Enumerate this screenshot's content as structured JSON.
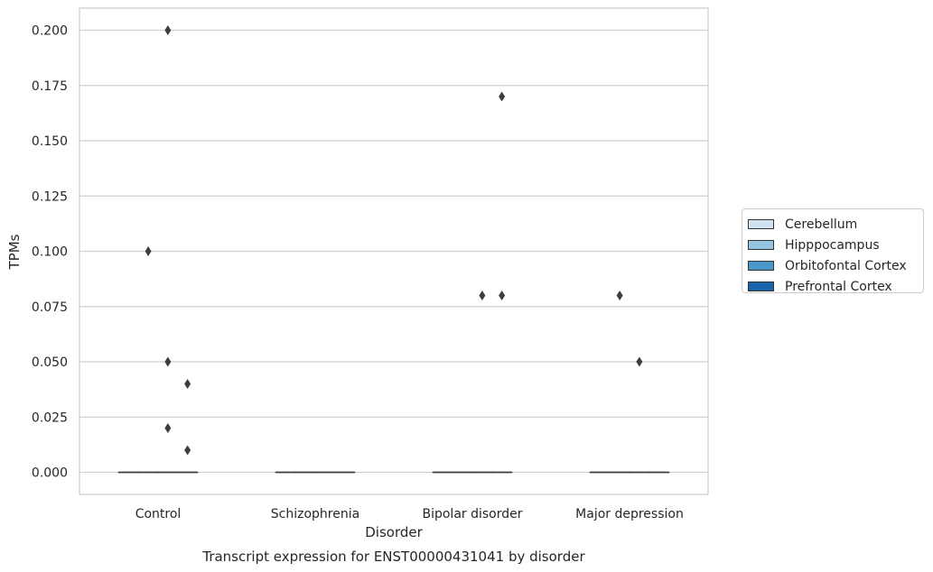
{
  "chart_data": {
    "type": "box",
    "title": "Transcript expression for ENST00000431041 by disorder",
    "xlabel": "Disorder",
    "ylabel": "TPMs",
    "ylim": [
      -0.01,
      0.21
    ],
    "yticks": [
      "0.000",
      "0.025",
      "0.050",
      "0.075",
      "0.100",
      "0.125",
      "0.150",
      "0.175",
      "0.200"
    ],
    "categories": [
      "Control",
      "Schizophrenia",
      "Bipolar disorder",
      "Major depression"
    ],
    "grid": true,
    "legend_position": "right",
    "series": [
      {
        "name": "Cerebellum",
        "color": "#d0e1f2",
        "boxes": [
          {
            "q1": 0,
            "median": 0,
            "q3": 0
          },
          {
            "q1": 0,
            "median": 0,
            "q3": 0
          },
          {
            "q1": 0,
            "median": 0,
            "q3": 0
          },
          {
            "q1": 0,
            "median": 0,
            "q3": 0
          }
        ],
        "outliers": [
          [],
          [],
          [],
          []
        ]
      },
      {
        "name": "Hipppocampus",
        "color": "#94c4df",
        "boxes": [
          {
            "q1": 0,
            "median": 0,
            "q3": 0
          },
          {
            "q1": 0,
            "median": 0,
            "q3": 0
          },
          {
            "q1": 0,
            "median": 0,
            "q3": 0
          },
          {
            "q1": 0,
            "median": 0,
            "q3": 0
          }
        ],
        "outliers": [
          [
            0.1
          ],
          [],
          [],
          [
            0.08
          ]
        ]
      },
      {
        "name": "Orbitofontal Cortex",
        "color": "#4a98c9",
        "boxes": [
          {
            "q1": 0,
            "median": 0,
            "q3": 0
          },
          {
            "q1": 0,
            "median": 0,
            "q3": 0
          },
          {
            "q1": 0,
            "median": 0,
            "q3": 0
          },
          {
            "q1": 0,
            "median": 0,
            "q3": 0
          }
        ],
        "outliers": [
          [
            0.2,
            0.05,
            0.02
          ],
          [],
          [
            0.08
          ],
          [
            0.05
          ]
        ]
      },
      {
        "name": "Prefrontal Cortex",
        "color": "#1764ab",
        "boxes": [
          {
            "q1": 0,
            "median": 0,
            "q3": 0
          },
          {
            "q1": 0,
            "median": 0,
            "q3": 0
          },
          {
            "q1": 0,
            "median": 0,
            "q3": 0
          },
          {
            "q1": 0,
            "median": 0,
            "q3": 0
          }
        ],
        "outliers": [
          [
            0.04,
            0.01
          ],
          [],
          [
            0.17,
            0.08
          ],
          []
        ]
      }
    ]
  }
}
